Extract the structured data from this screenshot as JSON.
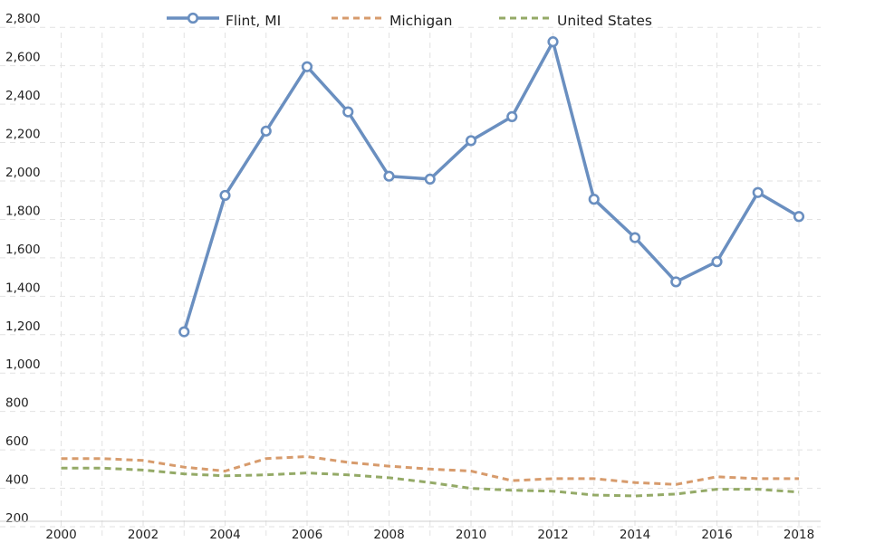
{
  "chart_data": {
    "type": "line",
    "title": "",
    "xlabel": "",
    "ylabel": "",
    "xlim": [
      1999.7,
      2018.3
    ],
    "ylim": [
      180,
      2940
    ],
    "x_ticks": [
      2000,
      2002,
      2004,
      2006,
      2008,
      2010,
      2012,
      2014,
      2016,
      2018
    ],
    "x_tick_labels": [
      "2000",
      "2002",
      "2004",
      "2006",
      "2008",
      "2010",
      "2012",
      "2014",
      "2016",
      "2018"
    ],
    "y_ticks": [
      200,
      400,
      600,
      800,
      1000,
      1200,
      1400,
      1600,
      1800,
      2000,
      2200,
      2400,
      2600,
      2800
    ],
    "y_tick_labels": [
      "200",
      "400",
      "600",
      "800",
      "1,000",
      "1,200",
      "1,400",
      "1,600",
      "1,800",
      "2,000",
      "2,200",
      "2,400",
      "2,600",
      "2,800"
    ],
    "grid": true,
    "legend_position": "top-center",
    "series": [
      {
        "name": "Flint, MI",
        "color": "#6a8fc0",
        "style": "solid-markers",
        "x": [
          2003,
          2004,
          2005,
          2006,
          2007,
          2008,
          2009,
          2010,
          2011,
          2012,
          2013,
          2014,
          2015,
          2016,
          2017,
          2018
        ],
        "values": [
          1215,
          1925,
          2260,
          2595,
          2360,
          2025,
          2010,
          2210,
          2335,
          2725,
          1905,
          1705,
          1475,
          1580,
          1940,
          1815
        ]
      },
      {
        "name": "Michigan",
        "color": "#d79b6c",
        "style": "dashed",
        "x": [
          2000,
          2001,
          2002,
          2003,
          2004,
          2005,
          2006,
          2007,
          2008,
          2009,
          2010,
          2011,
          2012,
          2013,
          2014,
          2015,
          2016,
          2017,
          2018
        ],
        "values": [
          555,
          555,
          545,
          510,
          490,
          555,
          565,
          535,
          515,
          500,
          490,
          440,
          450,
          450,
          430,
          420,
          460,
          450,
          450
        ]
      },
      {
        "name": "United States",
        "color": "#94aa67",
        "style": "dashed",
        "x": [
          2000,
          2001,
          2002,
          2003,
          2004,
          2005,
          2006,
          2007,
          2008,
          2009,
          2010,
          2011,
          2012,
          2013,
          2014,
          2015,
          2016,
          2017,
          2018
        ],
        "values": [
          505,
          505,
          495,
          475,
          465,
          470,
          480,
          470,
          455,
          430,
          400,
          390,
          385,
          365,
          360,
          370,
          395,
          395,
          380
        ]
      }
    ]
  }
}
